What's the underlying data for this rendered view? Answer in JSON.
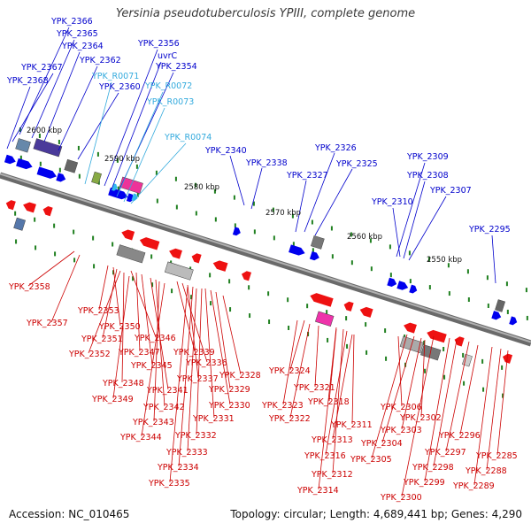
{
  "title": "Yersinia pseudotuberculosis YPIII, complete genome",
  "accession": "Accession: NC_010465",
  "topology": "Topology: circular; Length: 4,689,441 bp; Genes: 4,290",
  "colors": {
    "forward_label": "#0000cc",
    "rna_label": "#33aadd",
    "reverse_label": "#cc0000",
    "backbone": "#808080",
    "tick": "#208020"
  },
  "ruler": [
    "2600 kbp",
    "2590 kbp",
    "2580 kbp",
    "2570 kbp",
    "2560 kbp",
    "2550 kbp"
  ],
  "forward_genes": [
    "YPK_2366",
    "YPK_2365",
    "YPK_2364",
    "YPK_2367",
    "YPK_2362",
    "YPK_2368",
    "YPK_2360",
    "YPK_2356",
    "uvrC",
    "YPK_2354",
    "YPK_2340",
    "YPK_2338",
    "YPK_2326",
    "YPK_2327",
    "YPK_2325",
    "YPK_2309",
    "YPK_2308",
    "YPK_2307",
    "YPK_2310",
    "YPK_2295"
  ],
  "rna_genes": [
    "YPK_R0071",
    "YPK_R0072",
    "YPK_R0073",
    "YPK_R0074"
  ],
  "reverse_genes": [
    "YPK_2358",
    "YPK_2357",
    "YPK_2353",
    "YPK_2350",
    "YPK_2351",
    "YPK_2346",
    "YPK_2352",
    "YPK_2347",
    "YPK_2339",
    "YPK_2345",
    "YPK_2336",
    "YPK_2348",
    "YPK_2337",
    "YPK_2341",
    "YPK_2328",
    "YPK_2329",
    "YPK_2349",
    "YPK_2342",
    "YPK_2330",
    "YPK_2343",
    "YPK_2331",
    "YPK_2344",
    "YPK_2332",
    "YPK_2333",
    "YPK_2334",
    "YPK_2335",
    "YPK_2324",
    "YPK_2321",
    "YPK_2318",
    "YPK_2323",
    "YPK_2322",
    "YPK_2311",
    "YPK_2313",
    "YPK_2316",
    "YPK_2312",
    "YPK_2314",
    "YPK_2306",
    "YPK_2302",
    "YPK_2303",
    "YPK_2304",
    "YPK_2305",
    "YPK_2296",
    "YPK_2297",
    "YPK_2298",
    "YPK_2299",
    "YPK_2300",
    "YPK_2285",
    "YPK_2288",
    "YPK_2289"
  ]
}
